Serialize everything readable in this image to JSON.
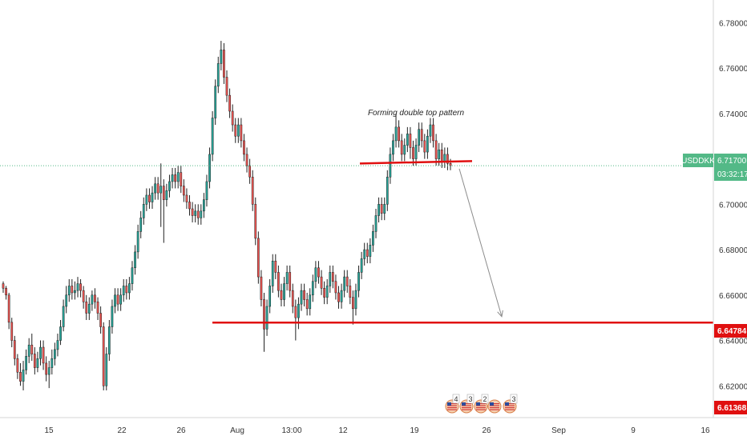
{
  "chart_data": {
    "type": "candlestick",
    "symbol_label": "USDDKK",
    "last_price_label": "6.71700",
    "countdown_label": "03:32:17",
    "support_price_label": "6.64784",
    "low_price_label": "6.61368",
    "annotation": "Forming double top pattern",
    "y_ticks": [
      "6.78000",
      "6.76000",
      "6.74000",
      "6.72000",
      "6.70000",
      "6.68000",
      "6.66000",
      "6.64000",
      "6.62000"
    ],
    "y_tick_values": [
      6.78,
      6.76,
      6.74,
      6.72,
      6.7,
      6.68,
      6.66,
      6.64,
      6.62
    ],
    "ylim": [
      6.606,
      6.79
    ],
    "x_ticks": [
      "15",
      "22",
      "26",
      "Aug",
      "13:00",
      "12",
      "19",
      "26",
      "Sep",
      "9",
      "16"
    ],
    "last_price": 6.717,
    "support_price": 6.64784,
    "resistance_price": 6.7185,
    "arrow_target_price": 6.6505,
    "grid": false,
    "colors": {
      "up": "#26a69a",
      "down": "#ef5350",
      "wick": "#222222",
      "support": "#e01010",
      "last_price": "#53b987",
      "low_price": "#e01010",
      "arrow": "#8c8c8c",
      "axis_text": "#333333"
    },
    "events": [
      {
        "id": "event-1",
        "count": "4"
      },
      {
        "id": "event-2",
        "count": "3"
      },
      {
        "id": "event-3",
        "count": "2"
      },
      {
        "id": "event-4",
        "count": ""
      },
      {
        "id": "event-5",
        "count": "3"
      }
    ],
    "candles": [
      [
        6.665,
        6.663,
        6.666,
        6.661
      ],
      [
        6.663,
        6.66,
        6.664,
        6.658
      ],
      [
        6.66,
        6.648,
        6.661,
        6.645
      ],
      [
        6.648,
        6.64,
        6.65,
        6.637
      ],
      [
        6.64,
        6.632,
        6.642,
        6.629
      ],
      [
        6.632,
        6.626,
        6.634,
        6.623
      ],
      [
        6.626,
        6.622,
        6.63,
        6.62
      ],
      [
        6.622,
        6.627,
        6.631,
        6.618
      ],
      [
        6.627,
        6.633,
        6.636,
        6.625
      ],
      [
        6.633,
        6.638,
        6.641,
        6.63
      ],
      [
        6.638,
        6.634,
        6.643,
        6.631
      ],
      [
        6.634,
        6.628,
        6.637,
        6.625
      ],
      [
        6.628,
        6.632,
        6.635,
        6.626
      ],
      [
        6.632,
        6.637,
        6.64,
        6.629
      ],
      [
        6.637,
        6.63,
        6.64,
        6.627
      ],
      [
        6.63,
        6.625,
        6.633,
        6.622
      ],
      [
        6.625,
        6.628,
        6.631,
        6.619
      ],
      [
        6.628,
        6.632,
        6.636,
        6.625
      ],
      [
        6.632,
        6.636,
        6.639,
        6.629
      ],
      [
        6.636,
        6.64,
        6.643,
        6.633
      ],
      [
        6.64,
        6.646,
        6.649,
        6.638
      ],
      [
        6.646,
        6.655,
        6.658,
        6.644
      ],
      [
        6.655,
        6.66,
        6.664,
        6.652
      ],
      [
        6.66,
        6.664,
        6.667,
        6.657
      ],
      [
        6.664,
        6.661,
        6.667,
        6.658
      ],
      [
        6.661,
        6.662,
        6.666,
        6.658
      ],
      [
        6.662,
        6.665,
        6.668,
        6.659
      ],
      [
        6.665,
        6.662,
        6.667,
        6.659
      ],
      [
        6.662,
        6.657,
        6.664,
        6.654
      ],
      [
        6.657,
        6.652,
        6.66,
        6.649
      ],
      [
        6.652,
        6.656,
        6.659,
        6.649
      ],
      [
        6.656,
        6.66,
        6.662,
        6.653
      ],
      [
        6.66,
        6.657,
        6.663,
        6.654
      ],
      [
        6.657,
        6.652,
        6.659,
        6.649
      ],
      [
        6.652,
        6.646,
        6.655,
        6.643
      ],
      [
        6.646,
        6.62,
        6.648,
        6.618
      ],
      [
        6.62,
        6.634,
        6.637,
        6.618
      ],
      [
        6.634,
        6.646,
        6.649,
        6.631
      ],
      [
        6.646,
        6.655,
        6.658,
        6.643
      ],
      [
        6.655,
        6.66,
        6.663,
        6.652
      ],
      [
        6.66,
        6.656,
        6.663,
        6.653
      ],
      [
        6.656,
        6.66,
        6.663,
        6.653
      ],
      [
        6.66,
        6.664,
        6.667,
        6.657
      ],
      [
        6.664,
        6.661,
        6.667,
        6.658
      ],
      [
        6.661,
        6.665,
        6.668,
        6.658
      ],
      [
        6.665,
        6.672,
        6.675,
        6.662
      ],
      [
        6.672,
        6.679,
        6.682,
        6.669
      ],
      [
        6.679,
        6.688,
        6.691,
        6.676
      ],
      [
        6.688,
        6.694,
        6.697,
        6.685
      ],
      [
        6.694,
        6.7,
        6.703,
        6.691
      ],
      [
        6.7,
        6.704,
        6.707,
        6.697
      ],
      [
        6.704,
        6.701,
        6.707,
        6.698
      ],
      [
        6.701,
        6.705,
        6.708,
        6.698
      ],
      [
        6.705,
        6.709,
        6.712,
        6.702
      ],
      [
        6.709,
        6.705,
        6.712,
        6.702
      ],
      [
        6.705,
        6.708,
        6.718,
        6.69
      ],
      [
        6.708,
        6.702,
        6.711,
        6.683
      ],
      [
        6.702,
        6.706,
        6.709,
        6.699
      ],
      [
        6.706,
        6.71,
        6.713,
        6.703
      ],
      [
        6.71,
        6.713,
        6.716,
        6.707
      ],
      [
        6.713,
        6.71,
        6.716,
        6.707
      ],
      [
        6.71,
        6.714,
        6.717,
        6.707
      ],
      [
        6.714,
        6.708,
        6.717,
        6.705
      ],
      [
        6.708,
        6.704,
        6.711,
        6.701
      ],
      [
        6.704,
        6.701,
        6.707,
        6.698
      ],
      [
        6.701,
        6.698,
        6.704,
        6.695
      ],
      [
        6.698,
        6.695,
        6.701,
        6.692
      ],
      [
        6.695,
        6.697,
        6.7,
        6.692
      ],
      [
        6.697,
        6.694,
        6.7,
        6.691
      ],
      [
        6.694,
        6.697,
        6.7,
        6.691
      ],
      [
        6.697,
        6.702,
        6.705,
        6.694
      ],
      [
        6.702,
        6.71,
        6.713,
        6.699
      ],
      [
        6.71,
        6.722,
        6.725,
        6.707
      ],
      [
        6.722,
        6.738,
        6.741,
        6.719
      ],
      [
        6.738,
        6.752,
        6.755,
        6.735
      ],
      [
        6.752,
        6.762,
        6.765,
        6.749
      ],
      [
        6.762,
        6.768,
        6.772,
        6.759
      ],
      [
        6.768,
        6.756,
        6.771,
        6.753
      ],
      [
        6.756,
        6.748,
        6.759,
        6.745
      ],
      [
        6.748,
        6.741,
        6.751,
        6.738
      ],
      [
        6.741,
        6.735,
        6.744,
        6.732
      ],
      [
        6.735,
        6.73,
        6.738,
        6.727
      ],
      [
        6.73,
        6.735,
        6.738,
        6.727
      ],
      [
        6.735,
        6.728,
        6.738,
        6.725
      ],
      [
        6.728,
        6.722,
        6.731,
        6.719
      ],
      [
        6.722,
        6.717,
        6.725,
        6.714
      ],
      [
        6.717,
        6.712,
        6.72,
        6.709
      ],
      [
        6.712,
        6.7,
        6.715,
        6.697
      ],
      [
        6.7,
        6.685,
        6.703,
        6.682
      ],
      [
        6.685,
        6.668,
        6.688,
        6.665
      ],
      [
        6.668,
        6.658,
        6.671,
        6.655
      ],
      [
        6.658,
        6.645,
        6.661,
        6.635
      ],
      [
        6.645,
        6.655,
        6.658,
        6.642
      ],
      [
        6.655,
        6.664,
        6.667,
        6.652
      ],
      [
        6.664,
        6.675,
        6.678,
        6.661
      ],
      [
        6.675,
        6.67,
        6.678,
        6.667
      ],
      [
        6.67,
        6.662,
        6.673,
        6.659
      ],
      [
        6.662,
        6.658,
        6.665,
        6.655
      ],
      [
        6.658,
        6.665,
        6.668,
        6.655
      ],
      [
        6.665,
        6.67,
        6.673,
        6.662
      ],
      [
        6.67,
        6.662,
        6.673,
        6.659
      ],
      [
        6.662,
        6.655,
        6.665,
        6.652
      ],
      [
        6.655,
        6.65,
        6.658,
        6.64
      ],
      [
        6.65,
        6.656,
        6.659,
        6.645
      ],
      [
        6.656,
        6.662,
        6.665,
        6.653
      ],
      [
        6.662,
        6.658,
        6.665,
        6.655
      ],
      [
        6.658,
        6.654,
        6.661,
        6.651
      ],
      [
        6.654,
        6.66,
        6.663,
        6.651
      ],
      [
        6.66,
        6.666,
        6.669,
        6.657
      ],
      [
        6.666,
        6.672,
        6.675,
        6.663
      ],
      [
        6.672,
        6.668,
        6.675,
        6.665
      ],
      [
        6.668,
        6.663,
        6.671,
        6.66
      ],
      [
        6.663,
        6.659,
        6.666,
        6.656
      ],
      [
        6.659,
        6.664,
        6.667,
        6.656
      ],
      [
        6.664,
        6.67,
        6.673,
        6.661
      ],
      [
        6.67,
        6.666,
        6.673,
        6.663
      ],
      [
        6.666,
        6.661,
        6.669,
        6.658
      ],
      [
        6.661,
        6.657,
        6.664,
        6.654
      ],
      [
        6.657,
        6.662,
        6.665,
        6.654
      ],
      [
        6.662,
        6.668,
        6.671,
        6.659
      ],
      [
        6.668,
        6.664,
        6.671,
        6.661
      ],
      [
        6.664,
        6.659,
        6.667,
        6.656
      ],
      [
        6.659,
        6.654,
        6.662,
        6.647
      ],
      [
        6.654,
        6.662,
        6.665,
        6.651
      ],
      [
        6.662,
        6.67,
        6.673,
        6.659
      ],
      [
        6.67,
        6.676,
        6.679,
        6.667
      ],
      [
        6.676,
        6.68,
        6.683,
        6.673
      ],
      [
        6.68,
        6.677,
        6.683,
        6.674
      ],
      [
        6.677,
        6.682,
        6.685,
        6.674
      ],
      [
        6.682,
        6.688,
        6.691,
        6.679
      ],
      [
        6.688,
        6.695,
        6.698,
        6.685
      ],
      [
        6.695,
        6.7,
        6.703,
        6.692
      ],
      [
        6.7,
        6.696,
        6.703,
        6.693
      ],
      [
        6.696,
        6.7,
        6.703,
        6.693
      ],
      [
        6.7,
        6.712,
        6.715,
        6.697
      ],
      [
        6.712,
        6.722,
        6.725,
        6.709
      ],
      [
        6.722,
        6.728,
        6.731,
        6.719
      ],
      [
        6.728,
        6.734,
        6.74,
        6.725
      ],
      [
        6.734,
        6.728,
        6.737,
        6.725
      ],
      [
        6.728,
        6.722,
        6.731,
        6.719
      ],
      [
        6.722,
        6.726,
        6.729,
        6.719
      ],
      [
        6.726,
        6.731,
        6.734,
        6.723
      ],
      [
        6.731,
        6.725,
        6.734,
        6.72
      ],
      [
        6.725,
        6.72,
        6.728,
        6.717
      ],
      [
        6.72,
        6.726,
        6.729,
        6.717
      ],
      [
        6.726,
        6.733,
        6.736,
        6.723
      ],
      [
        6.733,
        6.728,
        6.736,
        6.725
      ],
      [
        6.728,
        6.723,
        6.731,
        6.72
      ],
      [
        6.723,
        6.73,
        6.733,
        6.72
      ],
      [
        6.73,
        6.735,
        6.738,
        6.727
      ],
      [
        6.735,
        6.728,
        6.738,
        6.725
      ],
      [
        6.728,
        6.72,
        6.731,
        6.717
      ],
      [
        6.72,
        6.724,
        6.727,
        6.717
      ],
      [
        6.724,
        6.719,
        6.727,
        6.716
      ],
      [
        6.719,
        6.722,
        6.725,
        6.716
      ],
      [
        6.722,
        6.718,
        6.725,
        6.715
      ],
      [
        6.718,
        6.717,
        6.72,
        6.715
      ]
    ]
  }
}
